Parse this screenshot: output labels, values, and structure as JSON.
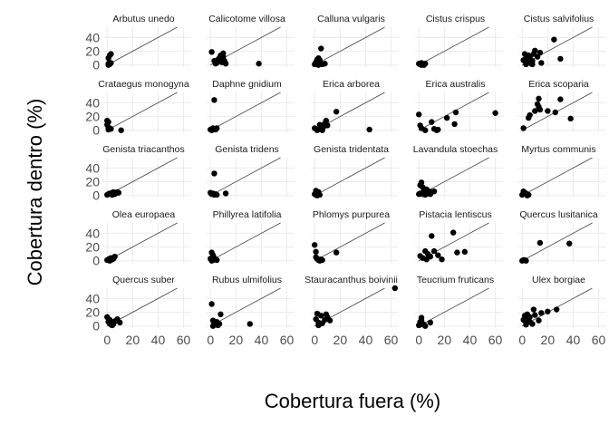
{
  "chart_data": {
    "type": "scatter",
    "facet": {
      "ncol": 5,
      "nrow": 5
    },
    "xlabel": "Cobertura fuera (%)",
    "ylabel": "Cobertura dentro (%)",
    "xlim": [
      -3,
      66
    ],
    "ylim": [
      -3,
      55
    ],
    "xticks": [
      0,
      20,
      40,
      60
    ],
    "yticks": [
      0,
      20,
      40
    ],
    "reference_line": "y = x",
    "grid": true,
    "point_color": "#000000",
    "line_color": "#444444",
    "grid_color": "#ebebeb",
    "panels": [
      {
        "title": "Arbutus unedo",
        "points": [
          [
            1,
            10
          ],
          [
            2,
            14
          ],
          [
            3,
            16
          ],
          [
            1,
            2
          ],
          [
            2,
            1
          ],
          [
            3,
            3
          ],
          [
            1,
            0
          ]
        ]
      },
      {
        "title": "Calicotome villosa",
        "points": [
          [
            1,
            19
          ],
          [
            3,
            6
          ],
          [
            4,
            2
          ],
          [
            6,
            8
          ],
          [
            7,
            10
          ],
          [
            8,
            14
          ],
          [
            10,
            17
          ],
          [
            10,
            12
          ],
          [
            11,
            6
          ],
          [
            12,
            2
          ],
          [
            9,
            4
          ],
          [
            5,
            3
          ],
          [
            38,
            2
          ]
        ]
      },
      {
        "title": "Calluna vulgaris",
        "points": [
          [
            0,
            1
          ],
          [
            1,
            4
          ],
          [
            2,
            8
          ],
          [
            3,
            10
          ],
          [
            4,
            7
          ],
          [
            2,
            3
          ],
          [
            1,
            2
          ],
          [
            5,
            2
          ],
          [
            6,
            1
          ],
          [
            3,
            0
          ],
          [
            5,
            24
          ],
          [
            8,
            2
          ]
        ]
      },
      {
        "title": "Cistus crispus",
        "points": [
          [
            0,
            2
          ],
          [
            1,
            1
          ],
          [
            2,
            0
          ],
          [
            3,
            1
          ],
          [
            5,
            2
          ],
          [
            2,
            3
          ],
          [
            4,
            0
          ]
        ]
      },
      {
        "title": "Cistus salvifolius",
        "points": [
          [
            1,
            7
          ],
          [
            2,
            16
          ],
          [
            3,
            3
          ],
          [
            4,
            10
          ],
          [
            5,
            14
          ],
          [
            6,
            4
          ],
          [
            7,
            2
          ],
          [
            8,
            6
          ],
          [
            9,
            16
          ],
          [
            10,
            21
          ],
          [
            12,
            12
          ],
          [
            14,
            18
          ],
          [
            15,
            3
          ],
          [
            2,
            8
          ],
          [
            4,
            4
          ],
          [
            6,
            11
          ],
          [
            25,
            37
          ],
          [
            30,
            9
          ],
          [
            8,
            1
          ],
          [
            3,
            1
          ]
        ]
      },
      {
        "title": "Crataegus monogyna",
        "points": [
          [
            0,
            14
          ],
          [
            1,
            12
          ],
          [
            0,
            8
          ],
          [
            1,
            4
          ],
          [
            2,
            3
          ],
          [
            1,
            1
          ],
          [
            3,
            2
          ],
          [
            11,
            0
          ]
        ]
      },
      {
        "title": "Daphne gnidium",
        "points": [
          [
            0,
            1
          ],
          [
            1,
            0
          ],
          [
            2,
            3
          ],
          [
            3,
            2
          ],
          [
            4,
            1
          ],
          [
            5,
            3
          ],
          [
            2,
            1
          ],
          [
            3,
            44
          ]
        ]
      },
      {
        "title": "Erica arborea",
        "points": [
          [
            0,
            3
          ],
          [
            3,
            1
          ],
          [
            5,
            2
          ],
          [
            7,
            5
          ],
          [
            8,
            10
          ],
          [
            9,
            14
          ],
          [
            10,
            7
          ],
          [
            17,
            27
          ],
          [
            43,
            1
          ],
          [
            4,
            8
          ],
          [
            2,
            0
          ],
          [
            6,
            0
          ]
        ]
      },
      {
        "title": "Erica australis",
        "points": [
          [
            0,
            23
          ],
          [
            1,
            7
          ],
          [
            2,
            3
          ],
          [
            5,
            0
          ],
          [
            10,
            12
          ],
          [
            12,
            2
          ],
          [
            14,
            0
          ],
          [
            15,
            1
          ],
          [
            22,
            18
          ],
          [
            28,
            9
          ],
          [
            29,
            26
          ],
          [
            60,
            25
          ]
        ]
      },
      {
        "title": "Erica scoparia",
        "points": [
          [
            1,
            3
          ],
          [
            5,
            18
          ],
          [
            6,
            22
          ],
          [
            10,
            28
          ],
          [
            12,
            38
          ],
          [
            13,
            46
          ],
          [
            14,
            30
          ],
          [
            20,
            28
          ],
          [
            26,
            26
          ],
          [
            30,
            45
          ],
          [
            38,
            17
          ],
          [
            13,
            34
          ]
        ]
      },
      {
        "title": "Genista triacanthos",
        "points": [
          [
            0,
            1
          ],
          [
            1,
            2
          ],
          [
            2,
            3
          ],
          [
            3,
            2
          ],
          [
            4,
            4
          ],
          [
            5,
            5
          ],
          [
            6,
            3
          ],
          [
            7,
            4
          ],
          [
            8,
            5
          ],
          [
            9,
            4
          ],
          [
            4,
            1
          ],
          [
            6,
            2
          ]
        ]
      },
      {
        "title": "Genista tridens",
        "points": [
          [
            0,
            4
          ],
          [
            1,
            2
          ],
          [
            2,
            3
          ],
          [
            3,
            1
          ],
          [
            4,
            2
          ],
          [
            5,
            1
          ],
          [
            3,
            32
          ],
          [
            12,
            3
          ]
        ]
      },
      {
        "title": "Genista tridentata",
        "points": [
          [
            0,
            2
          ],
          [
            1,
            7
          ],
          [
            2,
            3
          ],
          [
            3,
            5
          ],
          [
            4,
            1
          ],
          [
            2,
            0
          ],
          [
            1,
            1
          ]
        ]
      },
      {
        "title": "Lavandula stoechas",
        "points": [
          [
            0,
            2
          ],
          [
            1,
            15
          ],
          [
            2,
            19
          ],
          [
            3,
            12
          ],
          [
            4,
            8
          ],
          [
            5,
            4
          ],
          [
            6,
            9
          ],
          [
            7,
            3
          ],
          [
            8,
            6
          ],
          [
            9,
            2
          ],
          [
            10,
            5
          ],
          [
            12,
            6
          ],
          [
            3,
            2
          ],
          [
            5,
            1
          ],
          [
            1,
            3
          ]
        ]
      },
      {
        "title": "Myrtus communis",
        "points": [
          [
            0,
            1
          ],
          [
            1,
            6
          ],
          [
            2,
            4
          ],
          [
            3,
            3
          ],
          [
            5,
            1
          ],
          [
            4,
            0
          ]
        ]
      },
      {
        "title": "Olea europaea",
        "points": [
          [
            0,
            1
          ],
          [
            1,
            2
          ],
          [
            2,
            3
          ],
          [
            3,
            4
          ],
          [
            4,
            2
          ],
          [
            5,
            3
          ],
          [
            6,
            6
          ],
          [
            2,
            0
          ],
          [
            3,
            1
          ]
        ]
      },
      {
        "title": "Phillyrea latifolia",
        "points": [
          [
            0,
            3
          ],
          [
            1,
            12
          ],
          [
            2,
            8
          ],
          [
            3,
            4
          ],
          [
            4,
            2
          ],
          [
            5,
            1
          ],
          [
            2,
            1
          ],
          [
            1,
            0
          ]
        ]
      },
      {
        "title": "Phlomys purpurea",
        "points": [
          [
            0,
            23
          ],
          [
            1,
            5
          ],
          [
            2,
            3
          ],
          [
            3,
            1
          ],
          [
            4,
            0
          ],
          [
            5,
            2
          ],
          [
            6,
            1
          ],
          [
            17,
            12
          ],
          [
            1,
            13
          ]
        ]
      },
      {
        "title": "Pistacia lentiscus",
        "points": [
          [
            1,
            7
          ],
          [
            3,
            4
          ],
          [
            5,
            14
          ],
          [
            6,
            2
          ],
          [
            7,
            10
          ],
          [
            9,
            6
          ],
          [
            10,
            36
          ],
          [
            12,
            14
          ],
          [
            15,
            8
          ],
          [
            18,
            2
          ],
          [
            27,
            41
          ],
          [
            30,
            12
          ],
          [
            36,
            13
          ]
        ]
      },
      {
        "title": "Quercus lusitanica",
        "points": [
          [
            0,
            0
          ],
          [
            1,
            1
          ],
          [
            2,
            1
          ],
          [
            3,
            0
          ],
          [
            14,
            26
          ],
          [
            37,
            25
          ]
        ]
      },
      {
        "title": "Quercus suber",
        "points": [
          [
            0,
            13
          ],
          [
            1,
            6
          ],
          [
            2,
            4
          ],
          [
            3,
            2
          ],
          [
            4,
            1
          ],
          [
            6,
            7
          ],
          [
            8,
            10
          ],
          [
            10,
            5
          ],
          [
            5,
            3
          ],
          [
            2,
            9
          ]
        ]
      },
      {
        "title": "Rubus ulmifolius",
        "points": [
          [
            1,
            32
          ],
          [
            2,
            8
          ],
          [
            3,
            4
          ],
          [
            4,
            2
          ],
          [
            5,
            6
          ],
          [
            6,
            1
          ],
          [
            7,
            3
          ],
          [
            8,
            17
          ],
          [
            31,
            3
          ],
          [
            2,
            0
          ]
        ]
      },
      {
        "title": "Stauracanthus boivinii",
        "points": [
          [
            1,
            10
          ],
          [
            2,
            18
          ],
          [
            3,
            5
          ],
          [
            4,
            3
          ],
          [
            5,
            15
          ],
          [
            6,
            4
          ],
          [
            8,
            9
          ],
          [
            9,
            17
          ],
          [
            10,
            13
          ],
          [
            12,
            8
          ],
          [
            3,
            1
          ],
          [
            63,
            55
          ]
        ]
      },
      {
        "title": "Teucrium fruticans",
        "points": [
          [
            0,
            1
          ],
          [
            1,
            6
          ],
          [
            2,
            12
          ],
          [
            3,
            3
          ],
          [
            4,
            2
          ],
          [
            5,
            0
          ],
          [
            9,
            5
          ],
          [
            2,
            8
          ],
          [
            1,
            2
          ]
        ]
      },
      {
        "title": "Ulex borgiae",
        "points": [
          [
            1,
            9
          ],
          [
            2,
            15
          ],
          [
            3,
            5
          ],
          [
            4,
            17
          ],
          [
            5,
            11
          ],
          [
            6,
            13
          ],
          [
            8,
            3
          ],
          [
            9,
            24
          ],
          [
            10,
            16
          ],
          [
            13,
            8
          ],
          [
            15,
            19
          ],
          [
            20,
            21
          ],
          [
            27,
            24
          ],
          [
            3,
            2
          ],
          [
            6,
            6
          ]
        ]
      }
    ]
  }
}
